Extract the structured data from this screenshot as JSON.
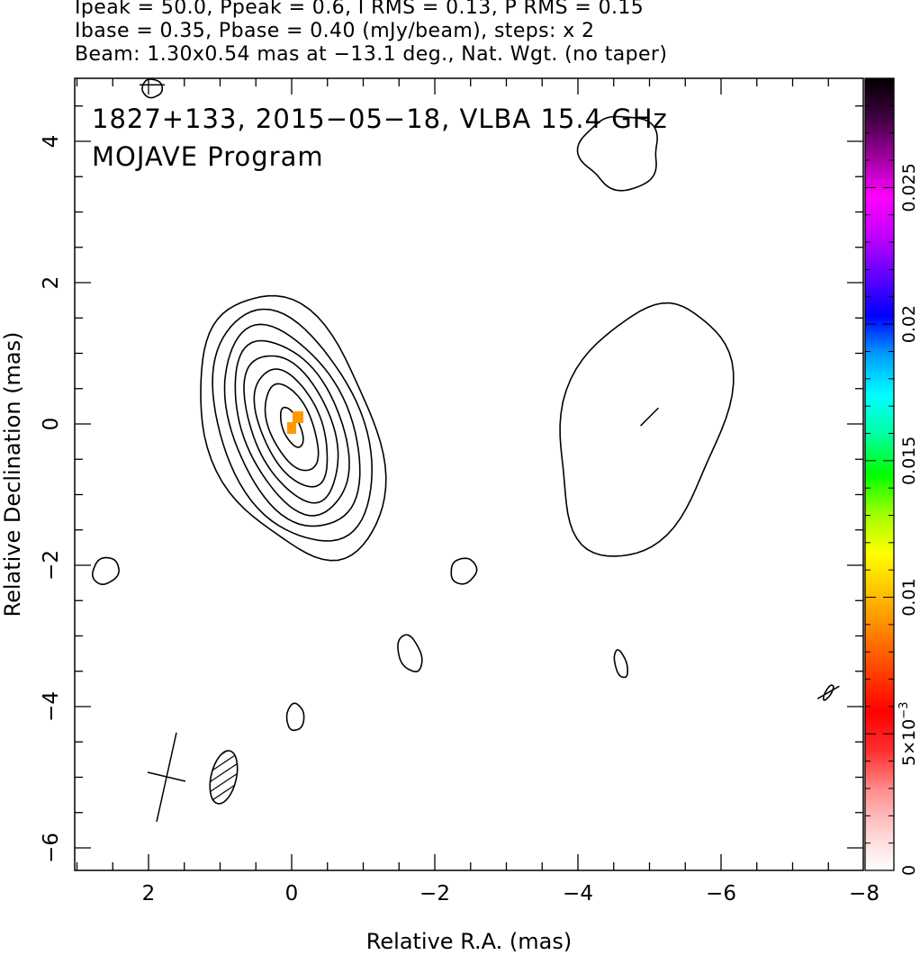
{
  "header": {
    "line1": "Ipeak = 50.0, Ppeak = 0.6, I RMS = 0.13, P RMS = 0.15",
    "line2": "Ibase = 0.35, Pbase = 0.40 (mJy/beam), steps: x 2",
    "line3": "Beam: 1.30x0.54 mas at −13.1 deg., Nat. Wgt. (no taper)"
  },
  "plot_labels": {
    "source_line": "1827+133, 2015−05−18, VLBA 15.4 GHz",
    "program_line": "MOJAVE Program"
  },
  "colorbar": {
    "tick_labels": [
      "0",
      "5×10",
      "0.01",
      "0.015",
      "0.02",
      "0.025"
    ],
    "exponent_label": "−3",
    "colors": [
      "#ffffff",
      "#ffd0d0",
      "#ff9090",
      "#ff3030",
      "#ff0000",
      "#ff4000",
      "#ff8000",
      "#ffc000",
      "#ffff00",
      "#a0ff00",
      "#00ff00",
      "#00ffa0",
      "#00ffff",
      "#00a0ff",
      "#0000ff",
      "#6000ff",
      "#c000ff",
      "#ff00ff",
      "#a000a0",
      "#400040",
      "#000000"
    ]
  },
  "chart_data": {
    "type": "contour",
    "xlabel": "Relative R.A. (mas)",
    "ylabel": "Relative Declination (mas)",
    "xlim": [
      3.1,
      -8.4
    ],
    "ylim": [
      -6.3,
      4.9
    ],
    "x_ticks": [
      2,
      0,
      -2,
      -4,
      -6,
      -8
    ],
    "x_tick_labels": [
      "2",
      "0",
      "−2",
      "−4",
      "−6",
      "−8"
    ],
    "y_ticks": [
      -6,
      -4,
      -2,
      0,
      2,
      4
    ],
    "y_tick_labels": [
      "−6",
      "−4",
      "−2",
      "0",
      "2",
      "4"
    ],
    "beam": {
      "major_mas": 1.3,
      "minor_mas": 0.54,
      "pa_deg": -13.1,
      "center": [
        0.95,
        -5.0
      ]
    },
    "core_contours": {
      "center": [
        0.0,
        -0.05
      ],
      "levels_mjy_per_beam": [
        0.35,
        0.7,
        1.4,
        2.8,
        5.6,
        11.2,
        22.4,
        44.8
      ],
      "semi_axes_mas": [
        [
          1.15,
          1.95
        ],
        [
          0.98,
          1.72
        ],
        [
          0.82,
          1.5
        ],
        [
          0.68,
          1.3
        ],
        [
          0.55,
          1.1
        ],
        [
          0.42,
          0.88
        ],
        [
          0.3,
          0.65
        ],
        [
          0.12,
          0.3
        ]
      ]
    },
    "jet_contour": {
      "center": [
        -5.0,
        0.0
      ],
      "approx_extent_x": [
        -3.7,
        -6.0
      ],
      "approx_extent_y": [
        -1.95,
        1.85
      ]
    },
    "polarization_peak": {
      "position": [
        -0.05,
        0.0
      ],
      "color": "#ff9900"
    },
    "polarization_vectors": [
      {
        "position": [
          -5.0,
          0.1
        ],
        "angle_deg": 45
      },
      {
        "position": [
          1.95,
          4.8
        ],
        "angle_deg": 0
      },
      {
        "position": [
          -7.5,
          -3.8
        ],
        "angle_deg": 30
      }
    ],
    "colorbar_range": [
      0,
      0.029
    ]
  }
}
